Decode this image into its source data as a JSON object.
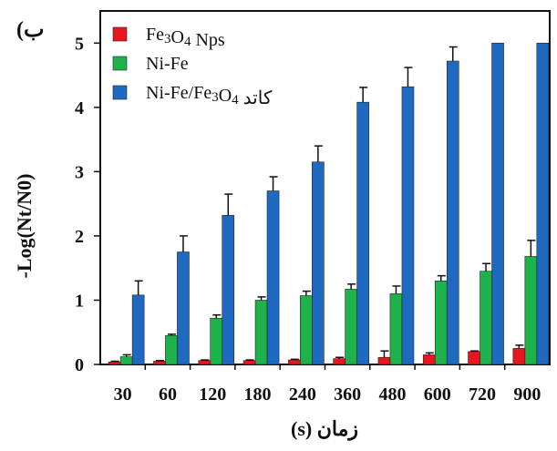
{
  "panel_label": "(ب",
  "chart_data": {
    "type": "bar",
    "xlabel": "زمان (s)",
    "ylabel": "-Log(Nt/N0)",
    "ylim": [
      0,
      5.5
    ],
    "yticks": [
      0,
      1,
      2,
      3,
      4,
      5
    ],
    "categories": [
      "30",
      "60",
      "120",
      "180",
      "240",
      "360",
      "480",
      "600",
      "720",
      "900"
    ],
    "legend_placement": "top-left",
    "series": [
      {
        "name": "Fe3O4 Nps",
        "color": "#e8161d",
        "values": [
          0.04,
          0.05,
          0.06,
          0.06,
          0.07,
          0.09,
          0.11,
          0.15,
          0.2,
          0.25
        ],
        "errors": [
          0.01,
          0.01,
          0.01,
          0.01,
          0.01,
          0.02,
          0.1,
          0.03,
          0.01,
          0.05
        ]
      },
      {
        "name": "Ni-Fe",
        "color": "#1db34a",
        "values": [
          0.12,
          0.45,
          0.72,
          1.0,
          1.07,
          1.17,
          1.1,
          1.3,
          1.45,
          1.68
        ],
        "errors": [
          0.03,
          0.02,
          0.05,
          0.05,
          0.07,
          0.08,
          0.12,
          0.08,
          0.12,
          0.25
        ]
      },
      {
        "name": "Ni-Fe/Fe3O4 کاتد",
        "color": "#1f69c1",
        "values": [
          1.08,
          1.75,
          2.32,
          2.7,
          3.15,
          4.08,
          4.32,
          4.72,
          5.0,
          5.0
        ],
        "errors": [
          0.22,
          0.25,
          0.33,
          0.22,
          0.25,
          0.23,
          0.3,
          0.22,
          0.0,
          0.0
        ]
      }
    ]
  }
}
